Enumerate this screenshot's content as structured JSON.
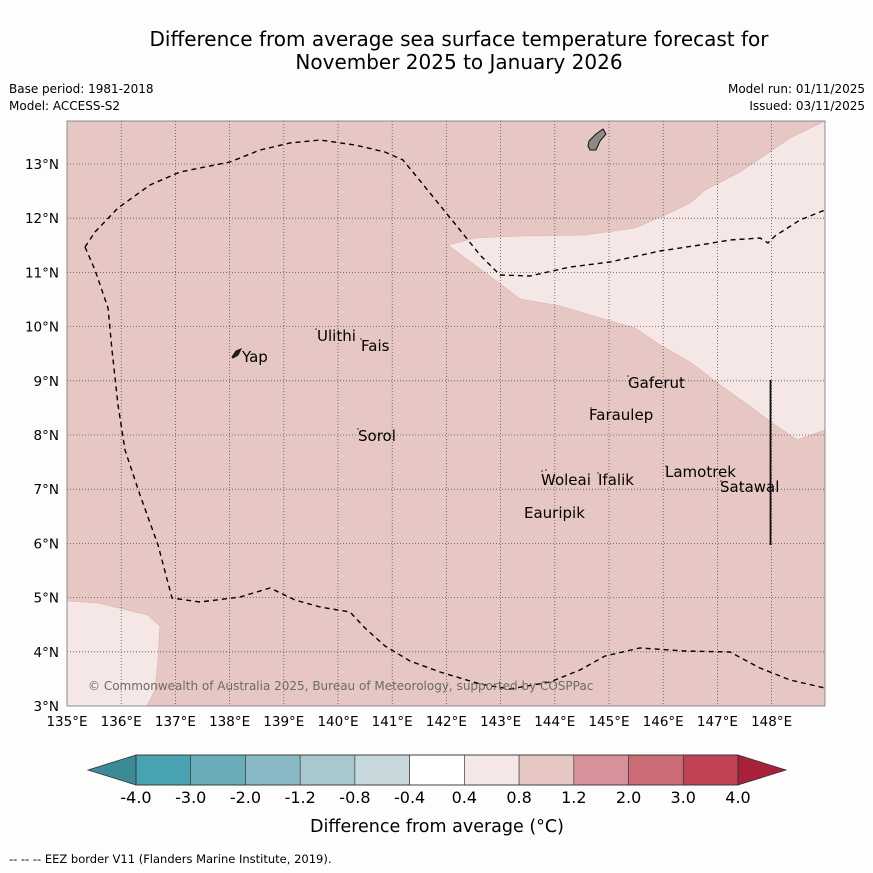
{
  "header": {
    "title_line1": "Difference from average sea surface temperature forecast for",
    "title_line2": "November 2025 to January 2026",
    "base_period": "Base period: 1981-2018",
    "model": "Model: ACCESS-S2",
    "model_run": "Model run: 01/11/2025",
    "issued": "Issued: 03/11/2025"
  },
  "map": {
    "lon_ticks": [
      "135°E",
      "136°E",
      "137°E",
      "138°E",
      "139°E",
      "140°E",
      "141°E",
      "142°E",
      "143°E",
      "144°E",
      "145°E",
      "146°E",
      "147°E",
      "148°E"
    ],
    "lat_ticks": [
      "3°N",
      "4°N",
      "5°N",
      "6°N",
      "7°N",
      "8°N",
      "9°N",
      "10°N",
      "11°N",
      "12°N",
      "13°N"
    ],
    "places": {
      "yap": "Yap",
      "ulithi": "Ulithi",
      "fais": "Fais",
      "sorol": "Sorol",
      "gaferut": "Gaferut",
      "faraulep": "Faraulep",
      "woleai": "Woleai",
      "ifalik": "Ifalik",
      "lamotrek": "Lamotrek",
      "satawal": "Satawal",
      "eauripik": "Eauripik"
    },
    "copyright": "© Commonwealth of Australia 2025, Bureau of Meteorology, supported by COSPPac",
    "fill_colors": {
      "band_0_8_to_1_2": "#e7c7c3",
      "band_0_4_to_0_8": "#f4e7e6",
      "land": "#8a8a8a"
    }
  },
  "colorbar": {
    "ticks": [
      "-4.0",
      "-3.0",
      "-2.0",
      "-1.2",
      "-0.8",
      "-0.4",
      "0.4",
      "0.8",
      "1.2",
      "2.0",
      "3.0",
      "4.0"
    ],
    "colors": [
      "#3d8a97",
      "#4aa3b2",
      "#69adbb",
      "#89b9c4",
      "#a8c8cf",
      "#c7d8dc",
      "#ffffff",
      "#f4e7e6",
      "#e7c7c3",
      "#d7919a",
      "#cb6b76",
      "#bf4355",
      "#a8203a"
    ],
    "label": "Difference from average (°C)"
  },
  "footer": {
    "eez_note": "--  --  -- EEZ border V11 (Flanders Marine Institute, 2019)."
  }
}
